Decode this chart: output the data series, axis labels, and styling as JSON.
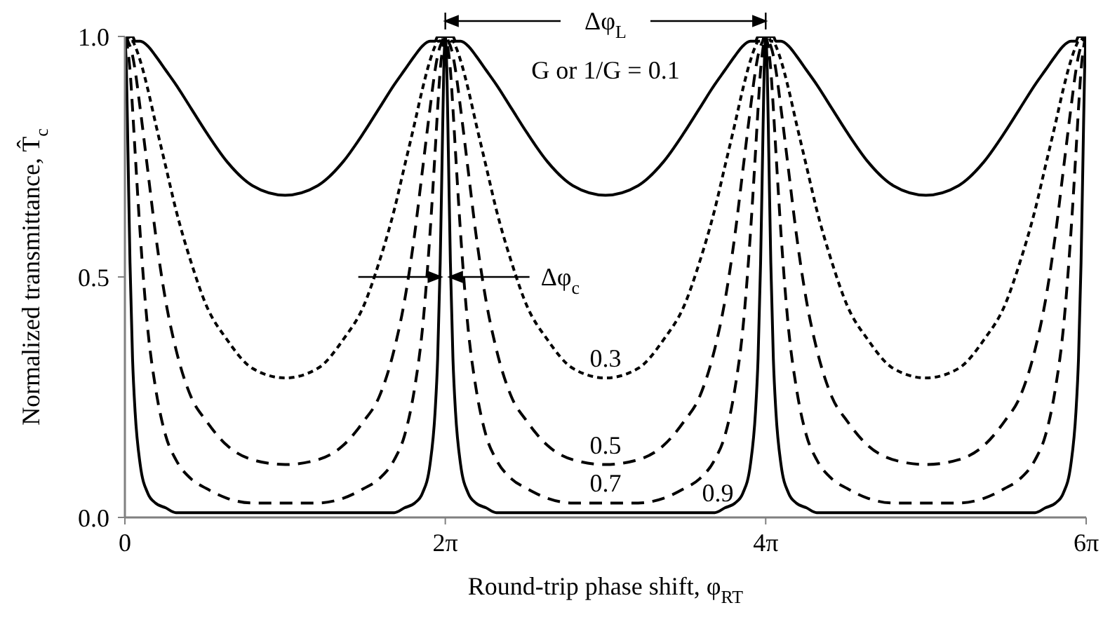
{
  "chart_data": {
    "type": "line",
    "xlabel": "Round-trip phase shift, φ$_{RT}$",
    "ylabel": "Normalized transmittance, T̂$_{c}$",
    "xlim": [
      0,
      18.85
    ],
    "xticks": [
      0,
      {
        "value": 6.283,
        "label": "2π"
      },
      {
        "value": 12.566,
        "label": "4π"
      },
      {
        "value": 18.85,
        "label": "6π"
      }
    ],
    "ylim": [
      0,
      1
    ],
    "yticks": [
      {
        "value": 0,
        "label": "0.0"
      },
      0.5,
      {
        "value": 1,
        "label": "1.0"
      }
    ],
    "marker": "none",
    "x": [
      0,
      0.03,
      0.06,
      0.1,
      0.15,
      0.2,
      0.3,
      0.45,
      0.6,
      0.8,
      1.0,
      1.3,
      1.6,
      2.0,
      2.5,
      3.142,
      3.783,
      4.283,
      4.683,
      4.983,
      5.283,
      5.483,
      5.683,
      5.833,
      5.983,
      6.083,
      6.133,
      6.183,
      6.223,
      6.253,
      6.283,
      6.313,
      6.343,
      6.383,
      6.433,
      6.483,
      6.583,
      6.733,
      6.883,
      7.083,
      7.283,
      7.583,
      7.883,
      8.283,
      8.783,
      9.425,
      10.066,
      10.566,
      10.966,
      11.266,
      11.566,
      11.766,
      11.966,
      12.116,
      12.266,
      12.366,
      12.416,
      12.466,
      12.506,
      12.536,
      12.566,
      12.596,
      12.626,
      12.666,
      12.716,
      12.766,
      12.866,
      13.016,
      13.166,
      13.366,
      13.566,
      13.866,
      14.166,
      14.566,
      15.066,
      15.708,
      16.35,
      16.85,
      17.25,
      17.55,
      17.85,
      18.05,
      18.25,
      18.4,
      18.55,
      18.65,
      18.7,
      18.75,
      18.79,
      18.82,
      18.85
    ],
    "series": [
      {
        "name": "G or 1/G = 0.1",
        "color": "#000000",
        "line_style": "solid",
        "values": [
          1,
          1,
          1,
          1,
          1,
          0.99,
          0.99,
          0.98,
          0.96,
          0.93,
          0.9,
          0.85,
          0.8,
          0.74,
          0.69,
          0.67,
          0.69,
          0.74,
          0.8,
          0.85,
          0.9,
          0.93,
          0.96,
          0.98,
          0.99,
          0.99,
          1,
          1,
          1,
          1,
          1,
          1,
          1,
          1,
          1,
          0.99,
          0.99,
          0.98,
          0.96,
          0.93,
          0.9,
          0.85,
          0.8,
          0.74,
          0.69,
          0.67,
          0.69,
          0.74,
          0.8,
          0.85,
          0.9,
          0.93,
          0.96,
          0.98,
          0.99,
          0.99,
          1,
          1,
          1,
          1,
          1,
          1,
          1,
          1,
          1,
          0.99,
          0.99,
          0.98,
          0.96,
          0.93,
          0.9,
          0.85,
          0.8,
          0.74,
          0.69,
          0.67,
          0.69,
          0.74,
          0.8,
          0.85,
          0.9,
          0.93,
          0.96,
          0.98,
          0.99,
          0.99,
          1,
          1,
          1,
          1,
          1
        ]
      },
      {
        "name": "0.3",
        "color": "#000000",
        "line_style": "dotted",
        "values": [
          1,
          1,
          1,
          0.99,
          0.99,
          0.98,
          0.95,
          0.89,
          0.82,
          0.73,
          0.64,
          0.53,
          0.44,
          0.37,
          0.31,
          0.29,
          0.31,
          0.37,
          0.44,
          0.53,
          0.64,
          0.73,
          0.82,
          0.89,
          0.95,
          0.98,
          0.99,
          0.99,
          1,
          1,
          1,
          1,
          1,
          0.99,
          0.99,
          0.98,
          0.95,
          0.89,
          0.82,
          0.73,
          0.64,
          0.53,
          0.44,
          0.37,
          0.31,
          0.29,
          0.31,
          0.37,
          0.44,
          0.53,
          0.64,
          0.73,
          0.82,
          0.89,
          0.95,
          0.98,
          0.99,
          0.99,
          1,
          1,
          1,
          1,
          1,
          0.99,
          0.99,
          0.98,
          0.95,
          0.89,
          0.82,
          0.73,
          0.64,
          0.53,
          0.44,
          0.37,
          0.31,
          0.29,
          0.31,
          0.37,
          0.44,
          0.53,
          0.64,
          0.73,
          0.82,
          0.89,
          0.95,
          0.98,
          0.99,
          0.99,
          1,
          1,
          1
        ]
      },
      {
        "name": "0.5",
        "color": "#000000",
        "line_style": "dashed",
        "values": [
          1,
          1,
          0.99,
          0.98,
          0.96,
          0.93,
          0.85,
          0.72,
          0.59,
          0.45,
          0.35,
          0.25,
          0.2,
          0.15,
          0.12,
          0.11,
          0.12,
          0.15,
          0.2,
          0.25,
          0.35,
          0.45,
          0.59,
          0.72,
          0.85,
          0.93,
          0.96,
          0.98,
          0.99,
          1,
          1,
          1,
          0.99,
          0.98,
          0.96,
          0.93,
          0.85,
          0.72,
          0.59,
          0.45,
          0.35,
          0.25,
          0.2,
          0.15,
          0.12,
          0.11,
          0.12,
          0.15,
          0.2,
          0.25,
          0.35,
          0.45,
          0.59,
          0.72,
          0.85,
          0.93,
          0.96,
          0.98,
          0.99,
          1,
          1,
          1,
          0.99,
          0.98,
          0.96,
          0.93,
          0.85,
          0.72,
          0.59,
          0.45,
          0.35,
          0.25,
          0.2,
          0.15,
          0.12,
          0.11,
          0.12,
          0.15,
          0.2,
          0.25,
          0.35,
          0.45,
          0.59,
          0.72,
          0.85,
          0.93,
          0.96,
          0.98,
          0.99,
          1,
          1
        ]
      },
      {
        "name": "0.7",
        "color": "#000000",
        "line_style": "dashed",
        "values": [
          1,
          0.99,
          0.97,
          0.93,
          0.85,
          0.76,
          0.59,
          0.39,
          0.27,
          0.17,
          0.12,
          0.08,
          0.06,
          0.04,
          0.03,
          0.03,
          0.03,
          0.04,
          0.06,
          0.08,
          0.12,
          0.17,
          0.27,
          0.39,
          0.59,
          0.76,
          0.85,
          0.93,
          0.97,
          0.99,
          1,
          0.99,
          0.97,
          0.93,
          0.85,
          0.76,
          0.59,
          0.39,
          0.27,
          0.17,
          0.12,
          0.08,
          0.06,
          0.04,
          0.03,
          0.03,
          0.03,
          0.04,
          0.06,
          0.08,
          0.12,
          0.17,
          0.27,
          0.39,
          0.59,
          0.76,
          0.85,
          0.93,
          0.97,
          0.99,
          1,
          0.99,
          0.97,
          0.93,
          0.85,
          0.76,
          0.59,
          0.39,
          0.27,
          0.17,
          0.12,
          0.08,
          0.06,
          0.04,
          0.03,
          0.03,
          0.03,
          0.04,
          0.06,
          0.08,
          0.12,
          0.17,
          0.27,
          0.39,
          0.59,
          0.76,
          0.85,
          0.93,
          0.97,
          0.99,
          1
        ]
      },
      {
        "name": "0.9",
        "color": "#000000",
        "line_style": "solid",
        "values": [
          1,
          0.93,
          0.76,
          0.53,
          0.33,
          0.22,
          0.11,
          0.05,
          0.03,
          0.02,
          0.01,
          0.01,
          0.01,
          0.01,
          0.01,
          0.01,
          0.01,
          0.01,
          0.01,
          0.01,
          0.01,
          0.02,
          0.03,
          0.05,
          0.11,
          0.22,
          0.33,
          0.53,
          0.76,
          0.93,
          1,
          0.93,
          0.76,
          0.53,
          0.33,
          0.22,
          0.11,
          0.05,
          0.03,
          0.02,
          0.01,
          0.01,
          0.01,
          0.01,
          0.01,
          0.01,
          0.01,
          0.01,
          0.01,
          0.01,
          0.01,
          0.02,
          0.03,
          0.05,
          0.11,
          0.22,
          0.33,
          0.53,
          0.76,
          0.93,
          1,
          0.93,
          0.76,
          0.53,
          0.33,
          0.22,
          0.11,
          0.05,
          0.03,
          0.02,
          0.01,
          0.01,
          0.01,
          0.01,
          0.01,
          0.01,
          0.01,
          0.01,
          0.01,
          0.01,
          0.01,
          0.02,
          0.03,
          0.05,
          0.11,
          0.22,
          0.33,
          0.53,
          0.76,
          0.93,
          1
        ]
      }
    ],
    "annotations": [
      "Δφ$_{L}$",
      "Δφ$_{c}$"
    ]
  }
}
